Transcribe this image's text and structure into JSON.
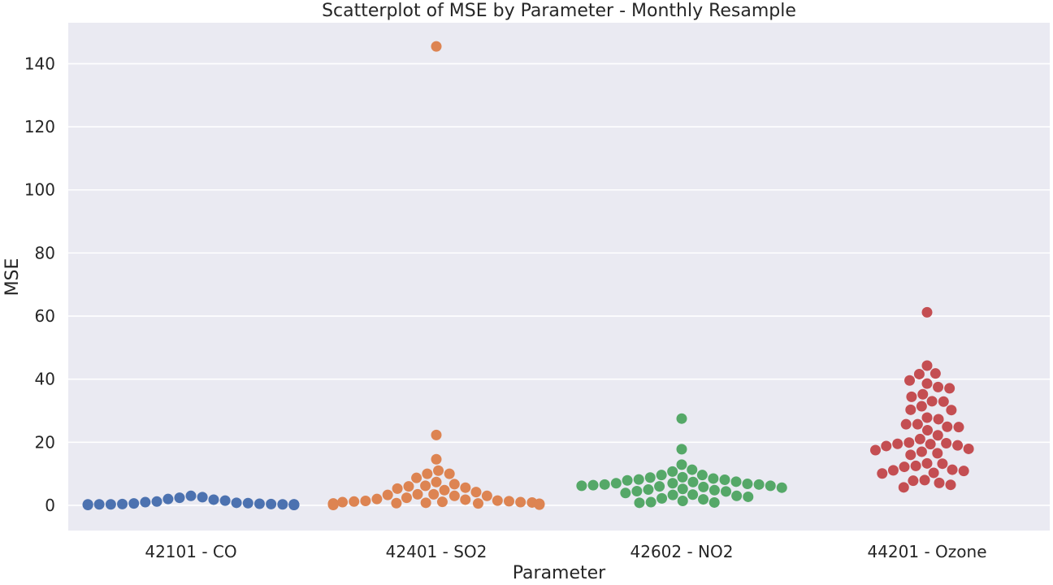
{
  "chart_data": {
    "type": "scatter",
    "subtype": "swarm",
    "title": "Scatterplot of MSE by Parameter - Monthly Resample",
    "xlabel": "Parameter",
    "ylabel": "MSE",
    "ylim": [
      -8,
      153
    ],
    "yticks": [
      0,
      20,
      40,
      60,
      80,
      100,
      120,
      140
    ],
    "grid": true,
    "background": "#EAEAF2",
    "categories": [
      "42101 - CO",
      "42401 - SO2",
      "42602 - NO2",
      "44201 - Ozone"
    ],
    "series": [
      {
        "category": "42101 - CO",
        "color": "#4C72B0",
        "values": [
          0.2,
          0.4,
          0.6,
          0.8,
          1.2,
          1.8,
          2.4,
          0.3,
          0.2,
          0.3,
          0.2,
          0.3,
          0.2,
          0.1,
          0.1,
          0.1,
          0.2,
          0.3,
          0.3,
          0.3,
          0.4,
          0.5,
          0.7,
          1.0,
          1.5,
          2.0,
          2.6,
          3.0
        ]
      },
      {
        "category": "42401 - SO2",
        "color": "#DD8452",
        "values": [
          145.5,
          22.3,
          14.6,
          10.0,
          11.0,
          10.0,
          8.7,
          7.4,
          6.7,
          6.2,
          6.0,
          5.6,
          5.3,
          4.8,
          4.2,
          3.5,
          3.3,
          3.0,
          2.0,
          1.5,
          1.3,
          1.2,
          1.1,
          1.0,
          0.9,
          0.8,
          0.7,
          0.6,
          0.5,
          0.5,
          0.4,
          0.3,
          0.2,
          0.1,
          0.2,
          0.4,
          0.6,
          1.0,
          1.4,
          1.8,
          2.4,
          3.0,
          3.5
        ]
      },
      {
        "category": "42602 - NO2",
        "color": "#55A868",
        "values": [
          27.5,
          17.8,
          12.9,
          11.3,
          10.7,
          9.6,
          9.6,
          8.9,
          8.8,
          8.5,
          8.1,
          8.2,
          7.9,
          7.5,
          7.4,
          7.0,
          6.8,
          6.6,
          6.4,
          6.2,
          6.0,
          5.8,
          5.6,
          5.2,
          5.0,
          4.8,
          4.5,
          4.4,
          3.9,
          3.4,
          3.3,
          3.0,
          2.7,
          2.2,
          1.9,
          1.4,
          1.0,
          0.9,
          0.8,
          6.2,
          6.6,
          7.0
        ]
      },
      {
        "category": "44201 - Ozone",
        "color": "#C44E52",
        "values": [
          61.2,
          44.3,
          41.8,
          41.6,
          39.6,
          38.6,
          37.5,
          37.1,
          35.2,
          34.4,
          33.0,
          32.9,
          31.4,
          30.3,
          30.2,
          27.8,
          27.3,
          25.7,
          25.7,
          24.9,
          24.8,
          23.8,
          22.2,
          21.0,
          19.9,
          19.7,
          19.5,
          19.4,
          19.0,
          18.8,
          17.9,
          17.5,
          17.0,
          16.5,
          16.0,
          13.3,
          13.2,
          12.5,
          12.2,
          11.3,
          11.1,
          10.9,
          10.3,
          10.1,
          8.0,
          7.8,
          7.1,
          6.5,
          5.7
        ]
      }
    ]
  }
}
